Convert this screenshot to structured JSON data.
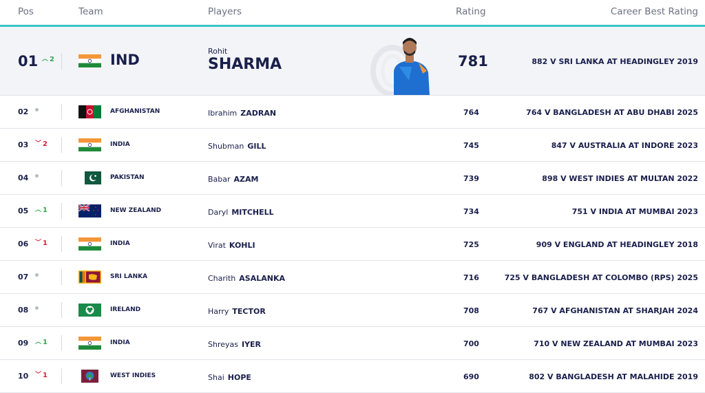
{
  "header": {
    "pos": "Pos",
    "team": "Team",
    "players": "Players",
    "rating": "Rating",
    "career": "Career Best Rating"
  },
  "leader": {
    "pos": "01",
    "move": "2",
    "move_dir": "up",
    "team": "IND",
    "flag": "india-flag",
    "first": "Rohit",
    "last": "SHARMA",
    "rating": "781",
    "career": "882 V SRI LANKA AT HEADINGLEY 2019"
  },
  "rows": [
    {
      "pos": "02",
      "move": "",
      "move_dir": "same",
      "team": "AFGHANISTAN",
      "flag": "afghanistan-flag",
      "first": "Ibrahim",
      "last": "ZADRAN",
      "rating": "764",
      "career": "764 V BANGLADESH AT ABU DHABI 2025"
    },
    {
      "pos": "03",
      "move": "2",
      "move_dir": "down",
      "team": "INDIA",
      "flag": "india-flag",
      "first": "Shubman",
      "last": "GILL",
      "rating": "745",
      "career": "847 V AUSTRALIA AT INDORE 2023"
    },
    {
      "pos": "04",
      "move": "",
      "move_dir": "same",
      "team": "PAKISTAN",
      "flag": "pakistan-flag",
      "first": "Babar",
      "last": "AZAM",
      "rating": "739",
      "career": "898 V WEST INDIES AT MULTAN 2022"
    },
    {
      "pos": "05",
      "move": "1",
      "move_dir": "up",
      "team": "NEW ZEALAND",
      "flag": "new-zealand-flag",
      "first": "Daryl",
      "last": "MITCHELL",
      "rating": "734",
      "career": "751 V INDIA AT MUMBAI 2023"
    },
    {
      "pos": "06",
      "move": "1",
      "move_dir": "down",
      "team": "INDIA",
      "flag": "india-flag",
      "first": "Virat",
      "last": "KOHLI",
      "rating": "725",
      "career": "909 V ENGLAND AT HEADINGLEY 2018"
    },
    {
      "pos": "07",
      "move": "",
      "move_dir": "same",
      "team": "SRI LANKA",
      "flag": "sri-lanka-flag",
      "first": "Charith",
      "last": "ASALANKA",
      "rating": "716",
      "career": "725 V BANGLADESH AT COLOMBO (RPS) 2025"
    },
    {
      "pos": "08",
      "move": "",
      "move_dir": "same",
      "team": "IRELAND",
      "flag": "ireland-flag",
      "first": "Harry",
      "last": "TECTOR",
      "rating": "708",
      "career": "767 V AFGHANISTAN AT SHARJAH 2024"
    },
    {
      "pos": "09",
      "move": "1",
      "move_dir": "up",
      "team": "INDIA",
      "flag": "india-flag",
      "first": "Shreyas",
      "last": "IYER",
      "rating": "700",
      "career": "710 V NEW ZEALAND AT MUMBAI 2023"
    },
    {
      "pos": "10",
      "move": "1",
      "move_dir": "down",
      "team": "WEST INDIES",
      "flag": "west-indies-flag",
      "first": "Shai",
      "last": "HOPE",
      "rating": "690",
      "career": "802 V BANGLADESH AT MALAHIDE 2019"
    }
  ],
  "colors": {
    "accent": "#3bc4c4",
    "up": "#2fa84f",
    "down": "#d2243a",
    "text": "#1a1f4b"
  }
}
